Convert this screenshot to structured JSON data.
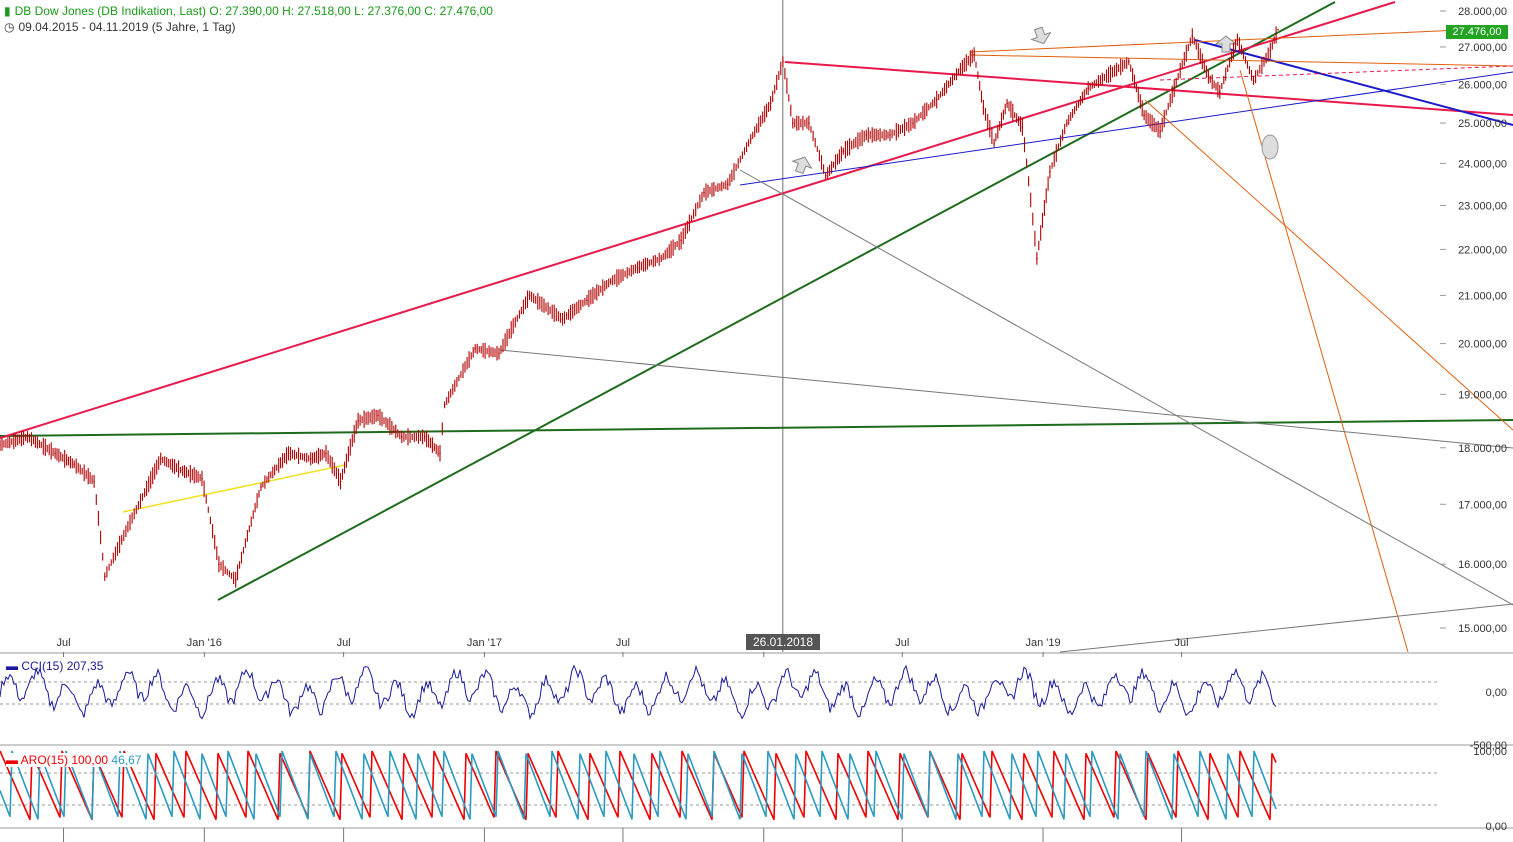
{
  "header": {
    "title": "DB Dow Jones (DB Indikation, Last)",
    "open": "O: 27.390,00",
    "high": "H: 27.518,00",
    "low": "L: 27.376,00",
    "close": "C: 27.476,00",
    "range": "09.04.2015 - 04.11.2019",
    "period": "(5 Jahre, 1 Tag)"
  },
  "price_tag": "27.476,00",
  "date_tag": "26.01.2018",
  "colors": {
    "up": "#1a9a1a",
    "candles": "#b00000",
    "red_line": "#e8194a",
    "green_line": "#1e6b1e",
    "blue_line": "#1a1acc",
    "orange_line": "#e06010",
    "gray_line": "#777777",
    "yellow_line": "#f0e020",
    "cci": "#1a1a9a",
    "aroon_up": "#ee0000",
    "aroon_down": "#2a9ac0"
  },
  "cci_panel": {
    "label": "CCI(15)",
    "value": "207,35",
    "ticks": [
      "0,00",
      "-500,00"
    ]
  },
  "aroon_panel": {
    "label": "ARO(15)",
    "up": "100,00",
    "down": "46,67",
    "ticks": [
      "100,00",
      "0,00"
    ]
  },
  "chart_data": {
    "type": "line",
    "title": "DB Dow Jones (DB Indikation, Last)",
    "y_ticks": [
      "28.000,00",
      "27.000,00",
      "26.000,00",
      "25.000,00",
      "24.000,00",
      "23.000,00",
      "22.000,00",
      "21.000,00",
      "20.000,00",
      "19.000,00",
      "18.000,00",
      "17.000,00",
      "16.000,00",
      "15.000,00"
    ],
    "x_ticks": [
      "Jul",
      "Jan '16",
      "Jul",
      "Jan '17",
      "Jul",
      "Jan '18",
      "Jul",
      "Jan '19",
      "Jul"
    ],
    "ylim": [
      14700,
      28300
    ],
    "scale": "log",
    "series": [
      {
        "x": [
          "2015-04-09",
          "2015-05-15",
          "2015-06-20",
          "2015-07-15",
          "2015-08-10",
          "2015-08-24",
          "2015-09-15",
          "2015-10-15",
          "2015-11-05",
          "2015-12-01",
          "2015-12-29",
          "2016-01-20",
          "2016-02-11",
          "2016-03-15",
          "2016-04-20",
          "2016-05-19",
          "2016-06-08",
          "2016-06-27",
          "2016-07-20",
          "2016-08-15",
          "2016-09-15",
          "2016-10-15",
          "2016-11-04",
          "2016-11-10",
          "2016-12-20",
          "2017-01-20",
          "2017-03-01",
          "2017-04-13",
          "2017-05-15",
          "2017-06-15",
          "2017-07-20",
          "2017-08-20",
          "2017-09-15",
          "2017-10-15",
          "2017-11-15",
          "2017-12-15",
          "2018-01-10",
          "2018-01-26",
          "2018-02-08",
          "2018-03-01",
          "2018-03-23",
          "2018-04-15",
          "2018-05-15",
          "2018-06-15",
          "2018-07-15",
          "2018-08-15",
          "2018-09-15",
          "2018-10-03",
          "2018-10-15",
          "2018-10-29",
          "2018-11-15",
          "2018-12-05",
          "2018-12-24",
          "2019-01-10",
          "2019-02-01",
          "2019-03-01",
          "2019-04-23",
          "2019-05-13",
          "2019-06-03",
          "2019-07-15",
          "2019-08-05",
          "2019-08-20",
          "2019-09-12",
          "2019-10-03",
          "2019-10-25",
          "2019-11-04"
        ],
        "y": [
          18050,
          18200,
          17900,
          17700,
          17400,
          15800,
          16400,
          17200,
          17800,
          17600,
          17450,
          16000,
          15750,
          17300,
          17900,
          17800,
          17900,
          17400,
          18500,
          18600,
          18200,
          18200,
          17900,
          18800,
          19900,
          19800,
          21000,
          20500,
          20900,
          21300,
          21600,
          21800,
          22200,
          23300,
          23500,
          24600,
          25500,
          26600,
          25000,
          25000,
          23700,
          24300,
          24700,
          24700,
          25000,
          25600,
          26400,
          26800,
          25400,
          24500,
          25500,
          24900,
          21800,
          23800,
          25000,
          25900,
          26600,
          25200,
          24800,
          27300,
          26200,
          25800,
          27200,
          26100,
          26900,
          27476
        ]
      }
    ]
  }
}
